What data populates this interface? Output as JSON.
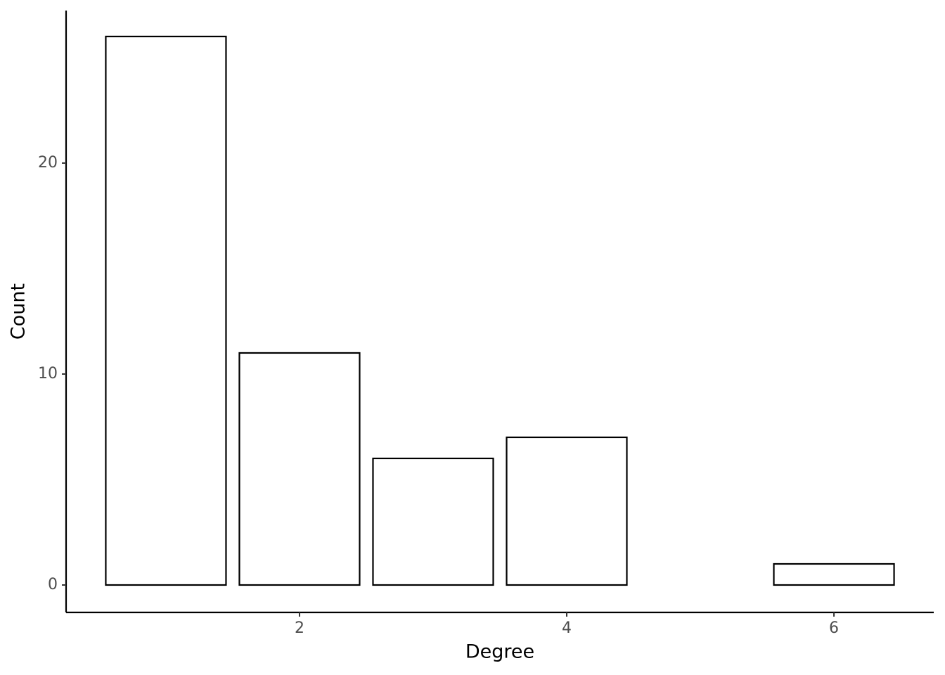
{
  "chart_data": {
    "type": "bar",
    "x_label": "Degree",
    "y_label": "Count",
    "x": [
      1,
      2,
      3,
      4,
      6
    ],
    "values": [
      26,
      11,
      6,
      7,
      1
    ],
    "color": "#ffffff",
    "edgecolor": "#000000",
    "xlim": [
      0.253,
      6.747
    ],
    "xticks": [
      2,
      4,
      6
    ],
    "ylim": [
      -1.3,
      27.23
    ],
    "yticks": [
      0,
      10,
      20
    ],
    "grid": false
  }
}
